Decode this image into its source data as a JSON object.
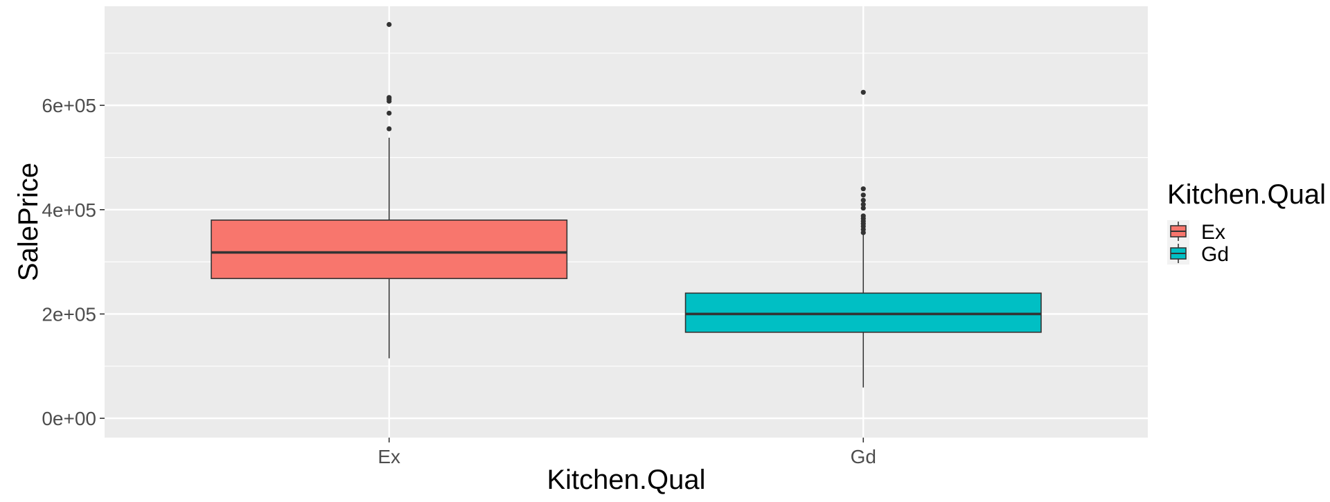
{
  "chart_data": {
    "type": "box",
    "title": "",
    "xlabel": "Kitchen.Qual",
    "ylabel": "SalePrice",
    "ylim": [
      -37000,
      790000
    ],
    "y_major_ticks": [
      0,
      200000,
      400000,
      600000
    ],
    "y_tick_labels": [
      "0e+00",
      "2e+05",
      "4e+05",
      "6e+05"
    ],
    "y_minor_ticks": [
      100000,
      300000,
      500000,
      700000
    ],
    "categories": [
      "Ex",
      "Gd"
    ],
    "grid": true,
    "legend": {
      "title": "Kitchen.Qual",
      "position": "right",
      "entries": [
        "Ex",
        "Gd"
      ]
    },
    "series": [
      {
        "category": "Ex",
        "color": "#F8766D",
        "whisker_low": 115000,
        "q1": 268000,
        "median": 318000,
        "q3": 380000,
        "whisker_high": 538000,
        "outliers": [
          555000,
          585000,
          608000,
          612000,
          615000,
          755000
        ]
      },
      {
        "category": "Gd",
        "color": "#00BFC4",
        "whisker_low": 59000,
        "q1": 165000,
        "median": 200000,
        "q3": 240000,
        "whisker_high": 352000,
        "outliers": [
          356000,
          362000,
          368000,
          373000,
          378000,
          383000,
          388000,
          403000,
          410000,
          418000,
          428000,
          440000,
          625000
        ]
      }
    ]
  }
}
